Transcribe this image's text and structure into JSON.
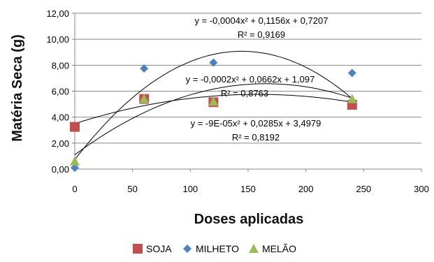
{
  "chart_data": {
    "type": "scatter",
    "xlabel": "Doses aplicadas",
    "ylabel": "Matéria Seca (g)",
    "xlim": [
      0,
      300
    ],
    "ylim": [
      0,
      12
    ],
    "x_ticks": [
      0,
      50,
      100,
      150,
      200,
      250,
      300
    ],
    "y_ticks": [
      0,
      2,
      4,
      6,
      8,
      10,
      12
    ],
    "x_tick_labels": [
      "0",
      "50",
      "100",
      "150",
      "200",
      "250",
      "300"
    ],
    "y_tick_labels": [
      "0,00",
      "2,00",
      "4,00",
      "6,00",
      "8,00",
      "10,00",
      "12,00"
    ],
    "grid": "horizontal",
    "legend_position": "bottom",
    "series": [
      {
        "name": "SOJA",
        "marker": "square",
        "color": "#c0504d",
        "x": [
          0,
          60,
          120,
          240
        ],
        "y": [
          3.25,
          5.4,
          5.15,
          4.95
        ],
        "trend": {
          "a": -9e-05,
          "b": 0.0285,
          "c": 3.4979
        }
      },
      {
        "name": "MILHETO",
        "marker": "diamond",
        "color": "#4f81bd",
        "x": [
          0,
          60,
          120,
          240
        ],
        "y": [
          0.1,
          7.75,
          8.2,
          7.4
        ],
        "trend": {
          "a": -0.0004,
          "b": 0.1156,
          "c": 0.7207
        }
      },
      {
        "name": "MELÃO",
        "marker": "triangle",
        "color": "#9bbb59",
        "x": [
          0,
          60,
          120,
          240
        ],
        "y": [
          0.6,
          5.4,
          5.2,
          5.4
        ],
        "trend": {
          "a": -0.0002,
          "b": 0.0662,
          "c": 1.097
        }
      }
    ],
    "annotations": [
      {
        "id": "milheto",
        "equation": "y = -0,0004x² + 0,1156x + 0,7207",
        "r2": "R² = 0,9169"
      },
      {
        "id": "melao",
        "equation": "y = -0,0002x² + 0,0662x + 1,097",
        "r2": "R² = 0,8763"
      },
      {
        "id": "soja",
        "equation": "y = -9E-05x² + 0,0285x + 3,4979",
        "r2": "R² = 0,8192"
      }
    ]
  }
}
